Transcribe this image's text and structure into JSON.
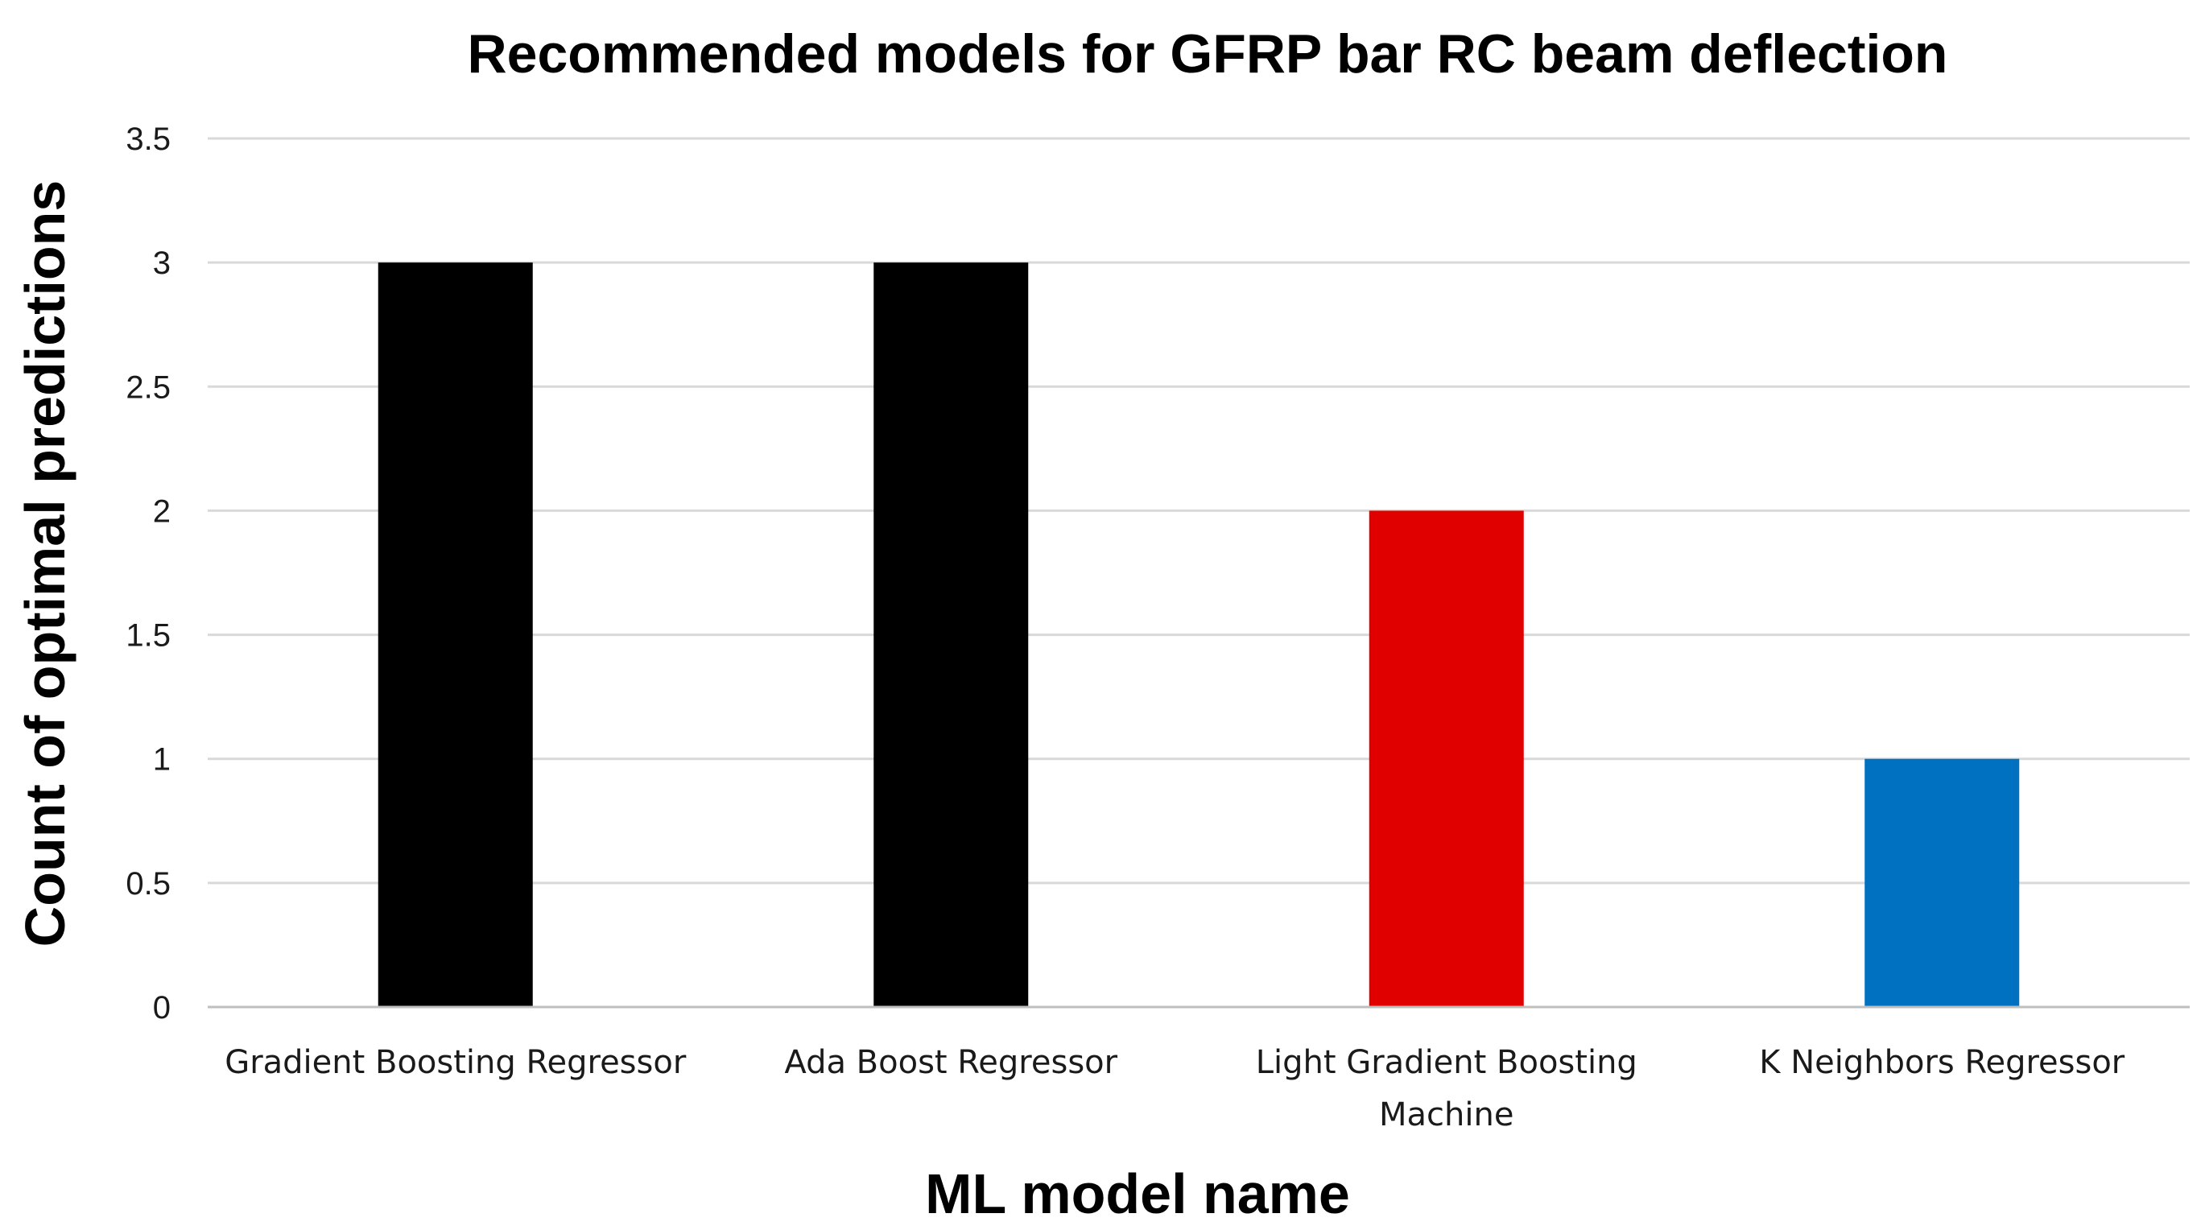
{
  "chart_data": {
    "type": "bar",
    "title": "Recommended models for GFRP bar RC beam deflection",
    "xlabel": "ML model name",
    "ylabel": "Count of optimal predictions",
    "categories": [
      [
        "Gradient Boosting Regressor"
      ],
      [
        "Ada Boost Regressor"
      ],
      [
        "Light Gradient Boosting",
        "Machine"
      ],
      [
        "K Neighbors Regressor"
      ]
    ],
    "values": [
      3,
      3,
      2,
      1
    ],
    "bar_colors": [
      "#000000",
      "#000000",
      "#e00000",
      "#0070c0"
    ],
    "ylim": [
      0,
      3.5
    ],
    "yticks": [
      0,
      0.5,
      1,
      1.5,
      2,
      2.5,
      3,
      3.5
    ],
    "ytick_labels": [
      "0",
      "0.5",
      "1",
      "1.5",
      "2",
      "2.5",
      "3",
      "3.5"
    ],
    "grid": true,
    "legend": "none"
  }
}
